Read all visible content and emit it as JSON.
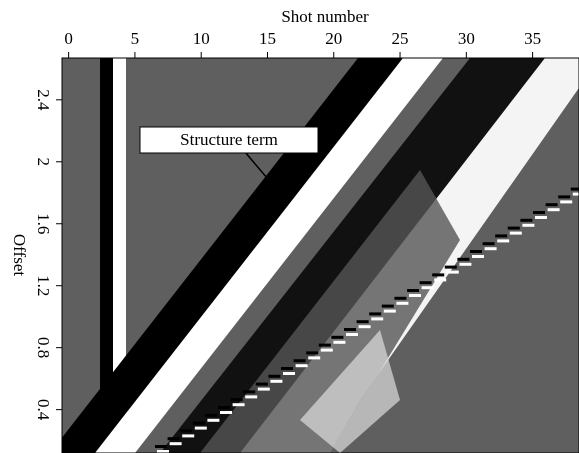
{
  "chart_data": {
    "type": "image",
    "x_label": "Shot number",
    "y_label": "Offset",
    "annotation": "Structure term",
    "xlim": [
      -0.5,
      38.5
    ],
    "xticks": [
      0,
      5,
      10,
      15,
      20,
      25,
      30,
      35
    ],
    "ylim": [
      0.12,
      2.67
    ],
    "yticks": [
      0.4,
      0.8,
      1.2,
      1.6,
      2,
      2.4
    ]
  }
}
